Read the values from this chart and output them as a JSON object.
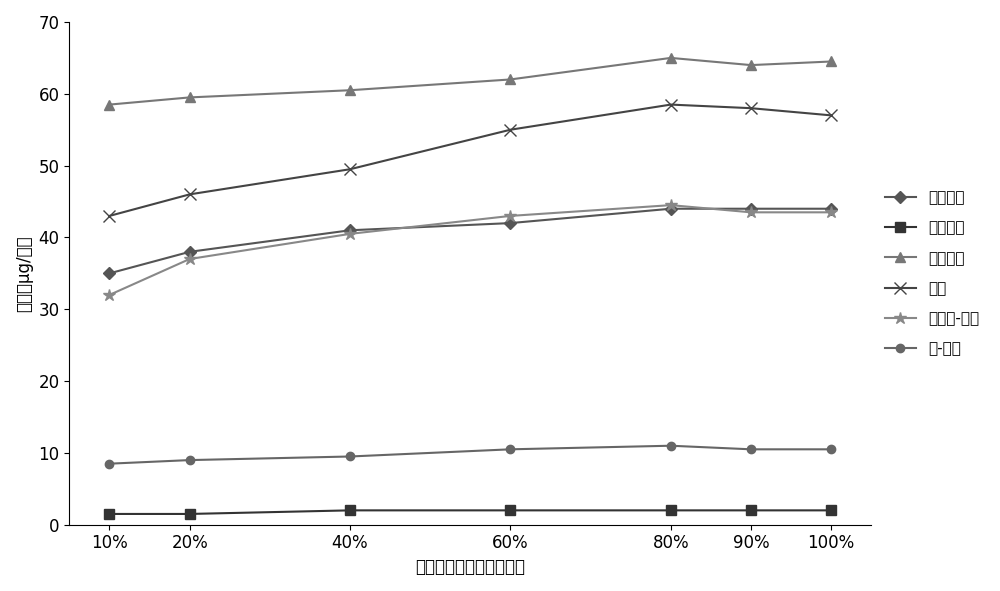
{
  "x_labels": [
    "10%",
    "20%",
    "40%",
    "60%",
    "80%",
    "90%",
    "100%"
  ],
  "x_values": [
    10,
    20,
    40,
    60,
    80,
    90,
    100
  ],
  "series": [
    {
      "name": "对苯二酚",
      "values": [
        35,
        38,
        41,
        42,
        44,
        44,
        44
      ],
      "color": "#555555",
      "marker": "D",
      "marker_size": 6,
      "linewidth": 1.5
    },
    {
      "name": "间苯二酚",
      "values": [
        1.5,
        1.5,
        2.0,
        2.0,
        2.0,
        2.0,
        2.0
      ],
      "color": "#333333",
      "marker": "s",
      "marker_size": 7,
      "linewidth": 1.5
    },
    {
      "name": "邻苯二酚",
      "values": [
        58.5,
        59.5,
        60.5,
        62,
        65,
        64,
        64.5
      ],
      "color": "#777777",
      "marker": "^",
      "marker_size": 7,
      "linewidth": 1.5
    },
    {
      "name": "苯酚",
      "values": [
        43,
        46,
        49.5,
        55,
        58.5,
        58,
        57
      ],
      "color": "#444444",
      "marker": "x",
      "marker_size": 8,
      "linewidth": 1.5
    },
    {
      "name": "间、对-甲酚",
      "values": [
        32,
        37,
        40.5,
        43,
        44.5,
        43.5,
        43.5
      ],
      "color": "#888888",
      "marker": "*",
      "marker_size": 9,
      "linewidth": 1.5
    },
    {
      "name": "邻-甲酚",
      "values": [
        8.5,
        9,
        9.5,
        10.5,
        11,
        10.5,
        10.5
      ],
      "color": "#666666",
      "marker": "o",
      "marker_size": 6,
      "linewidth": 1.5
    }
  ],
  "ylabel": "含量（μg/支）",
  "xlabel": "萌取液中甲醇的含量比例",
  "ylim": [
    0,
    70
  ],
  "yticks": [
    0,
    10,
    20,
    30,
    40,
    50,
    60,
    70
  ],
  "background_color": "#ffffff",
  "axis_fontsize": 12,
  "legend_fontsize": 11
}
